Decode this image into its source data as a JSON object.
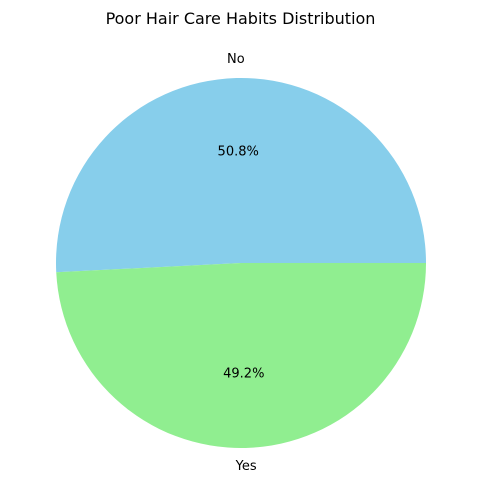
{
  "chart_data": {
    "type": "pie",
    "title": "Poor Hair Care Habits Distribution",
    "slices": [
      {
        "label": "No",
        "percent": 50.8,
        "percent_label": "50.8%",
        "color": "#87CEEB"
      },
      {
        "label": "Yes",
        "percent": 49.2,
        "percent_label": "49.2%",
        "color": "#90EE90"
      }
    ],
    "start_angle_deg": 0,
    "direction": "counterclockwise"
  }
}
